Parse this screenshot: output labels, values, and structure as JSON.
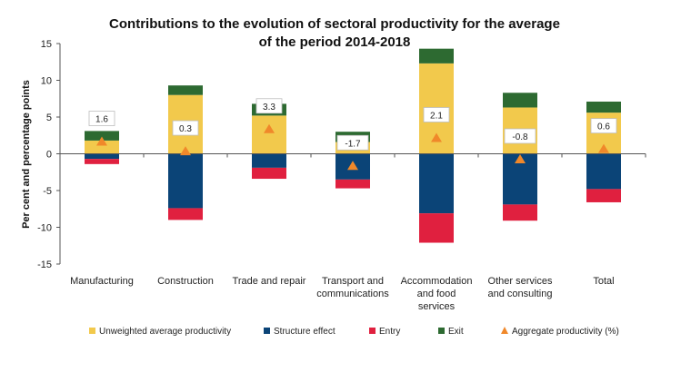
{
  "chart_data": {
    "type": "bar",
    "stacked": true,
    "title_lines": [
      "Contributions to the evolution of sectoral productivity for the average",
      "of the period 2014-2018"
    ],
    "ylabel": "Per cent and percentage points",
    "xlabel": "",
    "ylim": [
      -15,
      15
    ],
    "yticks": [
      -15,
      -10,
      -5,
      0,
      5,
      10,
      15
    ],
    "categories": [
      [
        "Manufacturing"
      ],
      [
        "Construction"
      ],
      [
        "Trade and repair"
      ],
      [
        "Transport and",
        "communications"
      ],
      [
        "Accommodation",
        "and food",
        "services"
      ],
      [
        "Other services",
        "and consulting"
      ],
      [
        "Total"
      ]
    ],
    "series": [
      {
        "name": "Unweighted average productivity",
        "color": "#f2c94c",
        "values": [
          1.8,
          8.0,
          5.2,
          1.6,
          12.3,
          6.3,
          5.6
        ]
      },
      {
        "name": "Structure effect",
        "color": "#0b4477",
        "values": [
          -0.7,
          -7.4,
          -1.9,
          -3.5,
          -8.1,
          -6.9,
          -4.8
        ]
      },
      {
        "name": "Entry",
        "color": "#e0203f",
        "values": [
          -0.7,
          -1.6,
          -1.5,
          -1.2,
          -4.0,
          -2.2,
          -1.8
        ]
      },
      {
        "name": "Exit",
        "color": "#2d6a31",
        "values": [
          1.3,
          1.3,
          1.6,
          1.4,
          2.0,
          2.0,
          1.5
        ]
      }
    ],
    "aggregate": {
      "name": "Aggregate productivity (%)",
      "color": "#f0882a",
      "values": [
        1.6,
        0.3,
        3.3,
        -1.7,
        2.1,
        -0.8,
        0.6
      ],
      "labels": [
        "1.6",
        "0.3",
        "3.3",
        "-1.7",
        "2.1",
        "-0.8",
        "0.6"
      ]
    },
    "legend_position": "bottom"
  }
}
